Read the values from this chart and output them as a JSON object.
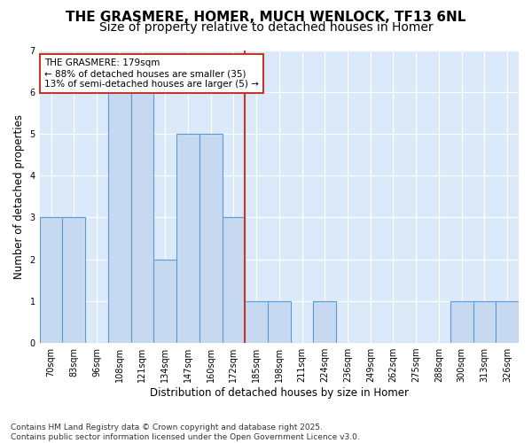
{
  "title_line1": "THE GRASMERE, HOMER, MUCH WENLOCK, TF13 6NL",
  "title_line2": "Size of property relative to detached houses in Homer",
  "xlabel": "Distribution of detached houses by size in Homer",
  "ylabel": "Number of detached properties",
  "categories": [
    "70sqm",
    "83sqm",
    "96sqm",
    "108sqm",
    "121sqm",
    "134sqm",
    "147sqm",
    "160sqm",
    "172sqm",
    "185sqm",
    "198sqm",
    "211sqm",
    "224sqm",
    "236sqm",
    "249sqm",
    "262sqm",
    "275sqm",
    "288sqm",
    "300sqm",
    "313sqm",
    "326sqm"
  ],
  "values": [
    3,
    3,
    0,
    6,
    6,
    2,
    5,
    5,
    3,
    1,
    1,
    0,
    1,
    0,
    0,
    0,
    0,
    0,
    1,
    1,
    1
  ],
  "bar_color": "#c6d9f0",
  "bar_edge_color": "#5b9bd5",
  "vline_color": "#c0392b",
  "annotation_text": "THE GRASMERE: 179sqm\n← 88% of detached houses are smaller (35)\n13% of semi-detached houses are larger (5) →",
  "annotation_box_color": "#c0392b",
  "ylim": [
    0,
    7
  ],
  "yticks": [
    0,
    1,
    2,
    3,
    4,
    5,
    6,
    7
  ],
  "background_color": "#dce9f8",
  "grid_color": "#ffffff",
  "fig_background": "#ffffff",
  "footer_line1": "Contains HM Land Registry data © Crown copyright and database right 2025.",
  "footer_line2": "Contains public sector information licensed under the Open Government Licence v3.0.",
  "title_fontsize": 11,
  "subtitle_fontsize": 10,
  "tick_fontsize": 7,
  "ylabel_fontsize": 8.5,
  "xlabel_fontsize": 8.5,
  "footer_fontsize": 6.5,
  "annotation_fontsize": 7.5
}
